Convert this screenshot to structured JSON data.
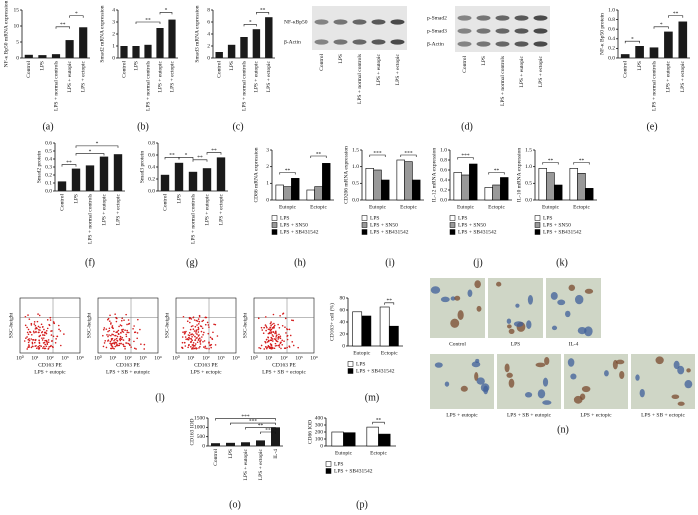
{
  "chart_data": [
    {
      "type": "bar",
      "label": "(a)",
      "ylabel": "NF-κ Bp50 mRNA expression",
      "categories": [
        "Control",
        "LPS",
        "LPS + normal controls",
        "LPS + eutopic",
        "LPS + ectopic"
      ],
      "values": [
        1,
        0.9,
        1.2,
        5.6,
        9.6
      ],
      "color": "#1a1a1a",
      "ylim": [
        0,
        15
      ],
      "yticks": [
        0,
        5,
        10,
        15
      ],
      "annotations": [
        "**",
        "*"
      ]
    },
    {
      "type": "bar",
      "label": "(b)",
      "ylabel": "Smad2 mRNA expression",
      "categories": [
        "Control",
        "LPS",
        "LPS + normal controls",
        "LPS + eutopic",
        "LPS + ectopic"
      ],
      "values": [
        1,
        1,
        1.1,
        2.5,
        3.2
      ],
      "color": "#1a1a1a",
      "ylim": [
        0,
        4
      ],
      "yticks": [
        0,
        1,
        2,
        3,
        4
      ],
      "annotations": [
        "**",
        "*"
      ]
    },
    {
      "type": "bar",
      "label": "(c)",
      "ylabel": "Smad3 mRNA expression",
      "categories": [
        "Control",
        "LPS",
        "LPS + normal controls",
        "LPS + eutopic",
        "LPS + ectopic"
      ],
      "values": [
        1,
        2.2,
        3.5,
        4.8,
        6.8
      ],
      "color": "#1a1a1a",
      "ylim": [
        0,
        8
      ],
      "yticks": [
        0,
        2,
        4,
        6,
        8
      ],
      "annotations": [
        "*",
        "**"
      ]
    },
    {
      "type": "bar",
      "label": "(e)",
      "ylabel": "NF-κ Bp50 protein",
      "categories": [
        "Control",
        "LPS",
        "LPS + normal controls",
        "LPS + eutopic",
        "LPS + ectopic"
      ],
      "values": [
        0.08,
        0.25,
        0.22,
        0.55,
        0.76
      ],
      "color": "#1a1a1a",
      "ylim": [
        0,
        1
      ],
      "yticks": [
        {
          "value": 0,
          "label": "0.0"
        },
        0.2,
        0.4,
        0.6,
        0.8,
        {
          "value": 1,
          "label": "1.0"
        }
      ],
      "annotations": [
        "*",
        "*",
        "**"
      ]
    },
    {
      "type": "bar",
      "label": "(f)",
      "ylabel": "Smad2 protein",
      "categories": [
        "Control",
        "LPS",
        "LPS + normal controls",
        "LPS + eutopic",
        "LPS + ectopic"
      ],
      "values": [
        0.12,
        0.28,
        0.32,
        0.43,
        0.46
      ],
      "color": "#1a1a1a",
      "ylim": [
        0,
        0.6
      ],
      "yticks": [
        {
          "value": 0,
          "label": "0.0"
        },
        0.1,
        0.2,
        0.3,
        0.4,
        0.5,
        0.6
      ],
      "annotations": [
        "**",
        "*",
        "*"
      ]
    },
    {
      "type": "bar",
      "label": "(g)",
      "ylabel": "Smad3 protein",
      "categories": [
        "Control",
        "LPS",
        "LPS + normal controls",
        "LPS + eutopic",
        "LPS + ectopic"
      ],
      "values": [
        0.27,
        0.47,
        0.32,
        0.38,
        0.56
      ],
      "color": "#1a1a1a",
      "ylim": [
        0,
        0.8
      ],
      "yticks": [
        {
          "value": 0,
          "label": "0.0"
        },
        0.2,
        0.4,
        0.6,
        0.8
      ],
      "annotations": [
        "**",
        "*",
        "**",
        "**"
      ]
    },
    {
      "type": "bar",
      "label": "(h)",
      "ylabel": "CD86 mRNA expression",
      "categories": [
        "Eutopic",
        "Ectopic"
      ],
      "series": [
        {
          "name": "LPS",
          "color": "#ffffff",
          "values": [
            0.9,
            0.6
          ]
        },
        {
          "name": "LPS + SN50",
          "color": "#999999",
          "values": [
            0.8,
            0.8
          ]
        },
        {
          "name": "LPS + SB431542",
          "color": "#000000",
          "values": [
            1.3,
            2.2
          ]
        }
      ],
      "ylim": [
        0,
        3
      ],
      "yticks": [
        0,
        1,
        2,
        3
      ],
      "annotations": [
        "**",
        "**"
      ]
    },
    {
      "type": "bar",
      "label": "(i)",
      "ylabel": "CD206 mRNA expression",
      "categories": [
        "Eutopic",
        "Ectopic"
      ],
      "series": [
        {
          "name": "LPS",
          "color": "#ffffff",
          "values": [
            0.95,
            1.2
          ]
        },
        {
          "name": "LPS + SN50",
          "color": "#999999",
          "values": [
            0.9,
            1.15
          ]
        },
        {
          "name": "LPS + SB431542",
          "color": "#000000",
          "values": [
            0.6,
            0.6
          ]
        }
      ],
      "ylim": [
        0,
        1.5
      ],
      "yticks": [
        {
          "value": 0,
          "label": "0.0"
        },
        0.5,
        {
          "value": 1,
          "label": "1.0"
        },
        1.5
      ],
      "annotations": [
        "***",
        "***"
      ]
    },
    {
      "type": "bar",
      "label": "(j)",
      "ylabel": "IL-12 mRNA expression",
      "categories": [
        "Eutopic",
        "Ectopic"
      ],
      "series": [
        {
          "name": "LPS",
          "color": "#ffffff",
          "values": [
            0.55,
            0.25
          ]
        },
        {
          "name": "LPS + SN50",
          "color": "#999999",
          "values": [
            0.5,
            0.3
          ]
        },
        {
          "name": "LPS + SB431542",
          "color": "#000000",
          "values": [
            0.72,
            0.45
          ]
        }
      ],
      "ylim": [
        0,
        1
      ],
      "yticks": [
        {
          "value": 0,
          "label": "0.0"
        },
        0.2,
        0.4,
        0.6,
        0.8,
        {
          "value": 1,
          "label": "1.0"
        }
      ],
      "annotations": [
        "***",
        "**"
      ]
    },
    {
      "type": "bar",
      "label": "(k)",
      "ylabel": "IL-10 mRNA expression",
      "categories": [
        "Eutopic",
        "Ectopic"
      ],
      "series": [
        {
          "name": "LPS",
          "color": "#ffffff",
          "values": [
            0.95,
            0.95
          ]
        },
        {
          "name": "LPS + SN50",
          "color": "#999999",
          "values": [
            0.82,
            0.8
          ]
        },
        {
          "name": "LPS + SB431542",
          "color": "#000000",
          "values": [
            0.45,
            0.35
          ]
        }
      ],
      "ylim": [
        0,
        1.5
      ],
      "yticks": [
        {
          "value": 0,
          "label": "0.0"
        },
        0.5,
        {
          "value": 1,
          "label": "1.0"
        },
        1.5
      ],
      "annotations": [
        "**",
        "**"
      ]
    },
    {
      "type": "bar",
      "label": "(m)",
      "ylabel": "CD163+ cell (%)",
      "categories": [
        "Eutopic",
        "Ectopic"
      ],
      "series": [
        {
          "name": "LPS",
          "color": "#ffffff",
          "values": [
            57,
            65
          ]
        },
        {
          "name": "LPS + SB431542",
          "color": "#000000",
          "values": [
            50,
            33
          ]
        }
      ],
      "ylim": [
        0,
        80
      ],
      "yticks": [
        0,
        20,
        40,
        60,
        80
      ],
      "annotations": [
        "**"
      ]
    },
    {
      "type": "bar",
      "label": "(o)",
      "ylabel": "CD163 IOD",
      "categories": [
        "Control",
        "LPS",
        "LPS + eutopic",
        "LPS + ectopic",
        "IL-4"
      ],
      "values": [
        150,
        170,
        200,
        300,
        1000
      ],
      "color": "#1a1a1a",
      "ylim": [
        0,
        1500
      ],
      "yticks": [
        0,
        500,
        1000,
        1500
      ],
      "annotations": [
        "***",
        "***",
        "**",
        "**"
      ]
    },
    {
      "type": "bar",
      "label": "(p)",
      "ylabel": "CD86 IOD",
      "categories": [
        "Eutopic",
        "Ectopic"
      ],
      "series": [
        {
          "name": "LPS",
          "color": "#ffffff",
          "values": [
            200,
            270
          ]
        },
        {
          "name": "LPS + SB431542",
          "color": "#000000",
          "values": [
            190,
            170
          ]
        }
      ],
      "ylim": [
        0,
        400
      ],
      "yticks": [
        0,
        100,
        200,
        300,
        400
      ],
      "annotations": [
        "**"
      ]
    }
  ],
  "blots": {
    "label": "(d)",
    "left_rows": [
      "NF-κBp50",
      "β-Actin"
    ],
    "right_rows": [
      "p-Smad2",
      "p-Smad3",
      "β-Actin"
    ],
    "lanes": [
      "Control",
      "LPS",
      "LPS + normal controls",
      "LPS + eutopic",
      "LPS + ectopic"
    ]
  },
  "flow": {
    "label": "(l)",
    "y_axis": "SSC-height",
    "x_axis": "CD163 PE",
    "x_ticks": [
      "10⁰",
      "10¹",
      "10²",
      "10³",
      "10⁴"
    ],
    "panels": [
      "LPS + eutopic",
      "LPS + SB + eutopic",
      "LPS + ectopic",
      "LPS + SB + ectopic"
    ]
  },
  "micrographs": {
    "label": "(n)",
    "top": [
      "Control",
      "LPS",
      "IL-4"
    ],
    "bottom": [
      "LPS + eutopic",
      "LPS + SB + eutopic",
      "LPS + ectopic",
      "LPS + SB + ectopic"
    ]
  }
}
